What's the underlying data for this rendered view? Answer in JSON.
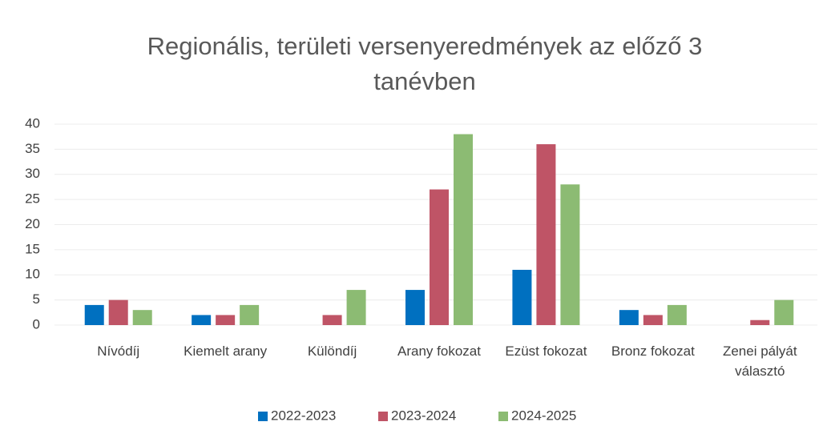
{
  "chart_data": {
    "type": "bar",
    "title": "Regionális, területi versenyeredmények az előző 3 tanévben",
    "categories": [
      "Nívódíj",
      "Kiemelt arany",
      "Különdíj",
      "Arany fokozat",
      "Ezüst fokozat",
      "Bronz fokozat",
      "Zenei pályát választó"
    ],
    "series": [
      {
        "name": "2022-2023",
        "color": "#0070c0",
        "values": [
          4,
          2,
          0,
          7,
          11,
          3,
          0
        ]
      },
      {
        "name": "2023-2024",
        "color": "#bf5466",
        "values": [
          5,
          2,
          2,
          27,
          36,
          2,
          1
        ]
      },
      {
        "name": "2024-2025",
        "color": "#8cbb73",
        "values": [
          3,
          4,
          7,
          38,
          28,
          4,
          5
        ]
      }
    ],
    "ylim": [
      0,
      40
    ],
    "yticks": [
      0,
      5,
      10,
      15,
      20,
      25,
      30,
      35,
      40
    ],
    "grid": true,
    "legend": "bottom"
  }
}
